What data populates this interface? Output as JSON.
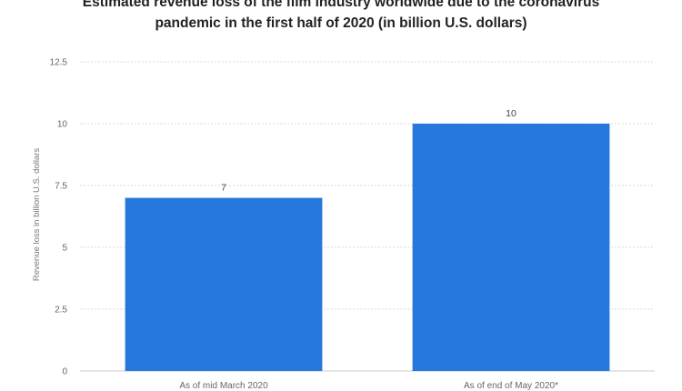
{
  "chart_data": {
    "type": "bar",
    "title_lines": [
      "Estimated revenue loss of the film industry worldwide due to the coronavirus",
      "pandemic in the first half of 2020 (in billion U.S. dollars)"
    ],
    "categories": [
      "As of mid March 2020",
      "As of end of May 2020*"
    ],
    "values": [
      7,
      10
    ],
    "value_labels": [
      "7",
      "10"
    ],
    "ylabel": "Revenue loss in billion U.S. dollars",
    "xlabel": "",
    "ylim": [
      0,
      12.5
    ],
    "yticks": [
      0,
      2.5,
      5,
      7.5,
      10,
      12.5
    ],
    "ytick_labels": [
      "0",
      "2.5",
      "5",
      "7.5",
      "10",
      "12.5"
    ],
    "grid": true,
    "bar_color": "#2678dc"
  }
}
